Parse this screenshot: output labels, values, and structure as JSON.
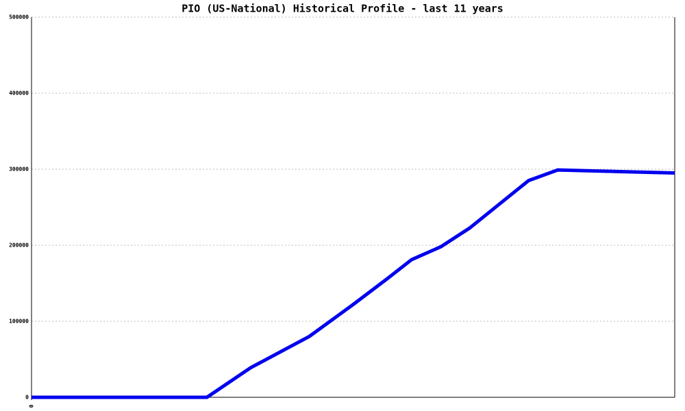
{
  "chart_data": {
    "type": "line",
    "title": "PIO (US-National) Historical Profile - last 11 years",
    "x": [
      0,
      36,
      45,
      57,
      66,
      73,
      78,
      84,
      90,
      102,
      108,
      120,
      132
    ],
    "values": [
      0,
      0,
      39000,
      80000,
      122000,
      156000,
      181000,
      198000,
      223000,
      285000,
      299000,
      297000,
      295000
    ],
    "color": "#0000ee",
    "xlim": [
      0,
      132
    ],
    "xticks": [
      0
    ],
    "ylim": [
      0,
      500000
    ],
    "yticks": [
      0,
      100000,
      200000,
      300000,
      400000,
      500000
    ],
    "grid": true
  }
}
